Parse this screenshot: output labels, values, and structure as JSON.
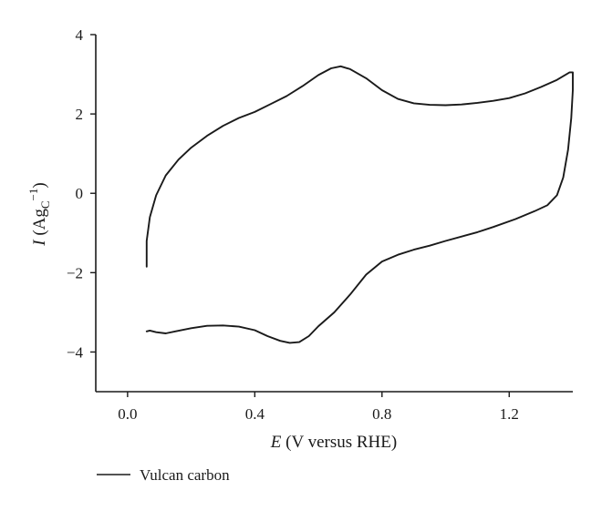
{
  "chart_data": {
    "type": "line",
    "title": "",
    "xlabel": {
      "symbol": "E",
      "text": " (V versus RHE)"
    },
    "ylabel": {
      "symbol": "I",
      "open": " (Ag",
      "sub": "C",
      "sup": "−1",
      "close": ")"
    },
    "xlim": [
      -0.1,
      1.4
    ],
    "ylim": [
      -5,
      4
    ],
    "x_ticks": [
      0.0,
      0.4,
      0.8,
      1.2
    ],
    "x_tick_labels": [
      "0.0",
      "0.4",
      "0.8",
      "1.2"
    ],
    "y_ticks": [
      -4,
      -2,
      0,
      2,
      4
    ],
    "y_tick_labels": [
      "−4",
      "−2",
      "0",
      "2",
      "4"
    ],
    "grid": false,
    "legend_position": "bottom-left, below plot",
    "series": [
      {
        "name": "Vulcan carbon",
        "color": "#1a1a1a",
        "points": [
          [
            0.06,
            -1.85
          ],
          [
            0.06,
            -1.2
          ],
          [
            0.07,
            -0.6
          ],
          [
            0.09,
            -0.05
          ],
          [
            0.12,
            0.45
          ],
          [
            0.16,
            0.85
          ],
          [
            0.2,
            1.15
          ],
          [
            0.25,
            1.45
          ],
          [
            0.3,
            1.7
          ],
          [
            0.35,
            1.9
          ],
          [
            0.4,
            2.05
          ],
          [
            0.45,
            2.25
          ],
          [
            0.5,
            2.45
          ],
          [
            0.55,
            2.7
          ],
          [
            0.6,
            2.98
          ],
          [
            0.64,
            3.15
          ],
          [
            0.67,
            3.2
          ],
          [
            0.7,
            3.13
          ],
          [
            0.75,
            2.9
          ],
          [
            0.8,
            2.6
          ],
          [
            0.85,
            2.38
          ],
          [
            0.9,
            2.27
          ],
          [
            0.95,
            2.23
          ],
          [
            1.0,
            2.22
          ],
          [
            1.05,
            2.24
          ],
          [
            1.1,
            2.28
          ],
          [
            1.15,
            2.33
          ],
          [
            1.2,
            2.4
          ],
          [
            1.25,
            2.52
          ],
          [
            1.3,
            2.68
          ],
          [
            1.35,
            2.86
          ],
          [
            1.39,
            3.05
          ],
          [
            1.4,
            3.05
          ],
          [
            1.4,
            2.6
          ],
          [
            1.395,
            1.9
          ],
          [
            1.385,
            1.1
          ],
          [
            1.37,
            0.4
          ],
          [
            1.35,
            -0.05
          ],
          [
            1.32,
            -0.3
          ],
          [
            1.28,
            -0.45
          ],
          [
            1.22,
            -0.65
          ],
          [
            1.15,
            -0.85
          ],
          [
            1.1,
            -0.98
          ],
          [
            1.0,
            -1.2
          ],
          [
            0.95,
            -1.32
          ],
          [
            0.9,
            -1.42
          ],
          [
            0.85,
            -1.55
          ],
          [
            0.8,
            -1.72
          ],
          [
            0.75,
            -2.05
          ],
          [
            0.7,
            -2.55
          ],
          [
            0.65,
            -3.0
          ],
          [
            0.6,
            -3.35
          ],
          [
            0.57,
            -3.6
          ],
          [
            0.54,
            -3.75
          ],
          [
            0.51,
            -3.77
          ],
          [
            0.48,
            -3.72
          ],
          [
            0.44,
            -3.6
          ],
          [
            0.4,
            -3.45
          ],
          [
            0.35,
            -3.36
          ],
          [
            0.3,
            -3.33
          ],
          [
            0.25,
            -3.34
          ],
          [
            0.2,
            -3.4
          ],
          [
            0.15,
            -3.48
          ],
          [
            0.12,
            -3.53
          ],
          [
            0.09,
            -3.5
          ],
          [
            0.07,
            -3.46
          ],
          [
            0.06,
            -3.48
          ]
        ]
      }
    ]
  }
}
